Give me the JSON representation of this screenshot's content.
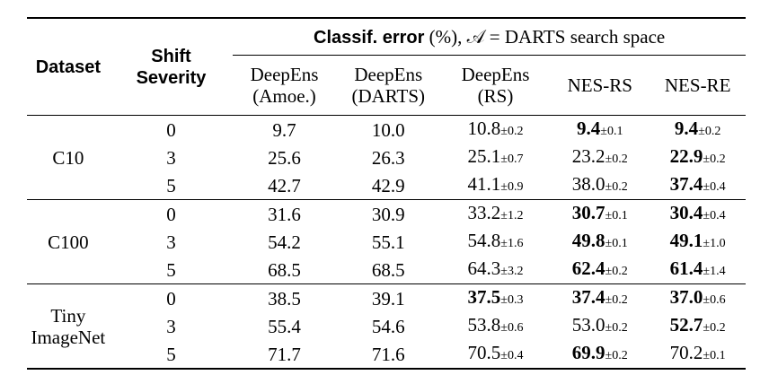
{
  "header": {
    "dataset": "Dataset",
    "shift": [
      "Shift",
      "Severity"
    ],
    "group_bold": "Classif. error",
    "group_rest": "(%), 𝒜 = DARTS search space",
    "columns": [
      [
        "DeepEns",
        "(Amoe.)"
      ],
      [
        "DeepEns",
        "(DARTS)"
      ],
      [
        "DeepEns",
        "(RS)"
      ],
      [
        "NES-RS"
      ],
      [
        "NES-RE"
      ]
    ]
  },
  "groups": [
    {
      "dataset": [
        "C10"
      ],
      "rows": [
        {
          "shift": "0",
          "cells": [
            {
              "value": "9.7"
            },
            {
              "value": "10.0"
            },
            {
              "value": "10.8",
              "err": "±0.2"
            },
            {
              "value": "9.4",
              "err": "±0.1",
              "bold": true
            },
            {
              "value": "9.4",
              "err": "±0.2",
              "bold": true
            }
          ]
        },
        {
          "shift": "3",
          "cells": [
            {
              "value": "25.6"
            },
            {
              "value": "26.3"
            },
            {
              "value": "25.1",
              "err": "±0.7"
            },
            {
              "value": "23.2",
              "err": "±0.2"
            },
            {
              "value": "22.9",
              "err": "±0.2",
              "bold": true
            }
          ]
        },
        {
          "shift": "5",
          "cells": [
            {
              "value": "42.7"
            },
            {
              "value": "42.9"
            },
            {
              "value": "41.1",
              "err": "±0.9"
            },
            {
              "value": "38.0",
              "err": "±0.2"
            },
            {
              "value": "37.4",
              "err": "±0.4",
              "bold": true
            }
          ]
        }
      ]
    },
    {
      "dataset": [
        "C100"
      ],
      "rows": [
        {
          "shift": "0",
          "cells": [
            {
              "value": "31.6"
            },
            {
              "value": "30.9"
            },
            {
              "value": "33.2",
              "err": "±1.2"
            },
            {
              "value": "30.7",
              "err": "±0.1",
              "bold": true
            },
            {
              "value": "30.4",
              "err": "±0.4",
              "bold": true
            }
          ]
        },
        {
          "shift": "3",
          "cells": [
            {
              "value": "54.2"
            },
            {
              "value": "55.1"
            },
            {
              "value": "54.8",
              "err": "±1.6"
            },
            {
              "value": "49.8",
              "err": "±0.1",
              "bold": true
            },
            {
              "value": "49.1",
              "err": "±1.0",
              "bold": true
            }
          ]
        },
        {
          "shift": "5",
          "cells": [
            {
              "value": "68.5"
            },
            {
              "value": "68.5"
            },
            {
              "value": "64.3",
              "err": "±3.2"
            },
            {
              "value": "62.4",
              "err": "±0.2",
              "bold": true
            },
            {
              "value": "61.4",
              "err": "±1.4",
              "bold": true
            }
          ]
        }
      ]
    },
    {
      "dataset": [
        "Tiny",
        "ImageNet"
      ],
      "rows": [
        {
          "shift": "0",
          "cells": [
            {
              "value": "38.5"
            },
            {
              "value": "39.1"
            },
            {
              "value": "37.5",
              "err": "±0.3",
              "bold": true
            },
            {
              "value": "37.4",
              "err": "±0.2",
              "bold": true
            },
            {
              "value": "37.0",
              "err": "±0.6",
              "bold": true
            }
          ]
        },
        {
          "shift": "3",
          "cells": [
            {
              "value": "55.4"
            },
            {
              "value": "54.6"
            },
            {
              "value": "53.8",
              "err": "±0.6"
            },
            {
              "value": "53.0",
              "err": "±0.2"
            },
            {
              "value": "52.7",
              "err": "±0.2",
              "bold": true
            }
          ]
        },
        {
          "shift": "5",
          "cells": [
            {
              "value": "71.7"
            },
            {
              "value": "71.6"
            },
            {
              "value": "70.5",
              "err": "±0.4"
            },
            {
              "value": "69.9",
              "err": "±0.2",
              "bold": true
            },
            {
              "value": "70.2",
              "err": "±0.1"
            }
          ]
        }
      ]
    }
  ]
}
